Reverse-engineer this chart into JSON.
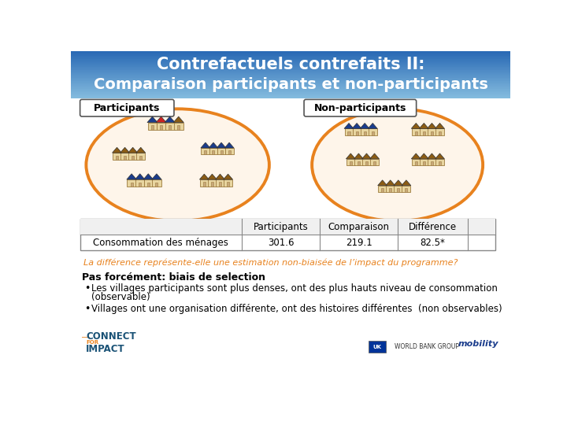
{
  "title_line1": "Contrefactuels contrefaits II:",
  "title_line2": "Comparaison participants et non-participants",
  "title_bg_color": "#4a8fc0",
  "title_text_color": "#ffffff",
  "label_participants": "Participants",
  "label_non_participants": "Non-participants",
  "ellipse_color": "#e8821e",
  "ellipse_fill": "#fef5ea",
  "table_headers": [
    "",
    "Participants",
    "Comparaison",
    "Différence"
  ],
  "table_row_label": "Consommation des ménages",
  "table_values": [
    "301.6",
    "219.1",
    "82.5*"
  ],
  "italic_text": "La différence représente-elle une estimation non-biaisée de l’impact du programme?",
  "italic_color": "#e8821e",
  "bold_header": "Pas forcément: biais de selection",
  "bullet1a": "Les villages participants sont plus denses, ont des plus hauts niveau de consommation",
  "bullet1b": "(observable)",
  "bullet2": "Villages ont une organisation différente, ont des histoires différentes  (non observables)",
  "bg_color": "#ffffff",
  "box_border_color": "#555555",
  "table_border_color": "#888888",
  "roof_blue": "#1a3c8c",
  "roof_red": "#cc2222",
  "roof_brown": "#8B5c14",
  "wall_color": "#e8d5a0",
  "wall_edge": "#9b7a3d"
}
